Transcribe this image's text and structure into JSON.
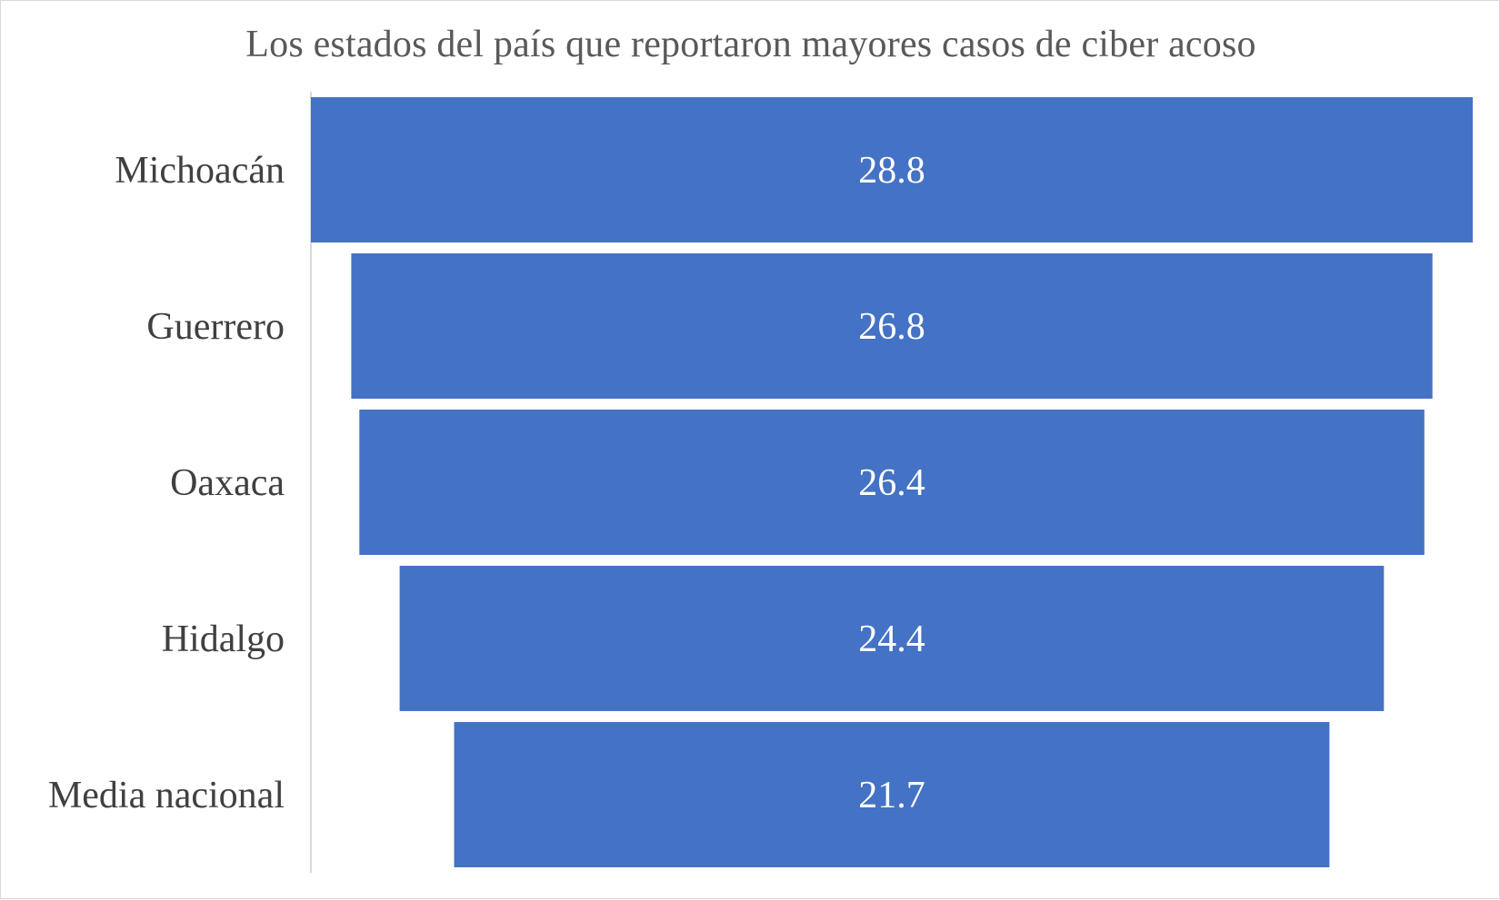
{
  "chart_data": {
    "type": "bar",
    "subtype": "funnel",
    "title": "Los estados del país que reportaron mayores casos de ciber acoso",
    "categories": [
      "Michoacán",
      "Guerrero",
      "Oaxaca",
      "Hidalgo",
      "Media nacional"
    ],
    "values": [
      28.8,
      26.8,
      26.4,
      24.4,
      21.7
    ],
    "value_labels": [
      "28.8",
      "26.8",
      "26.4",
      "24.4",
      "21.7"
    ],
    "bar_color": "#4472C4",
    "orientation": "horizontal",
    "centered": true,
    "grid": false,
    "legend": "none"
  }
}
